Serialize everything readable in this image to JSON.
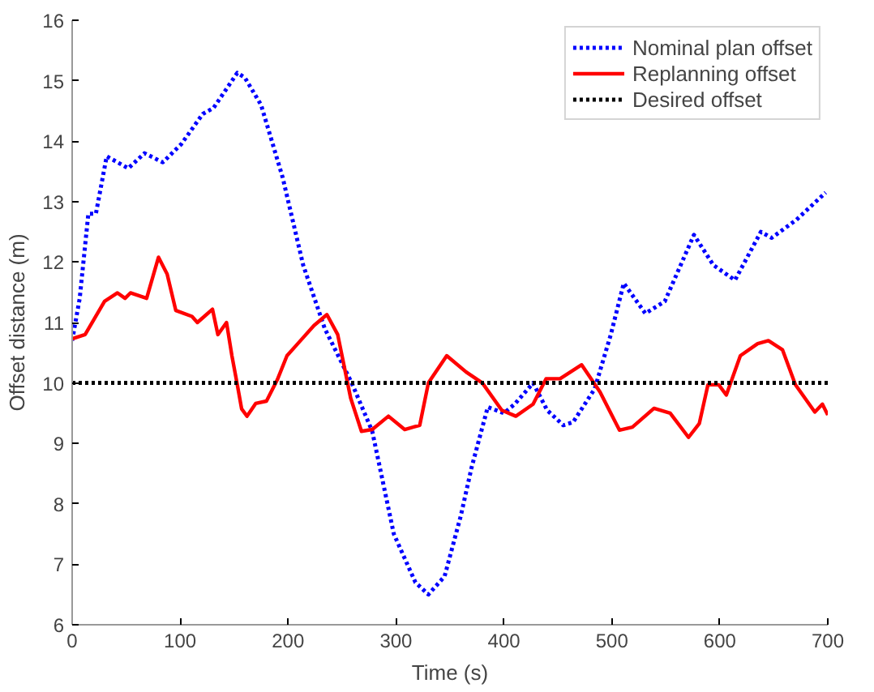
{
  "chart_data": {
    "type": "line",
    "xlabel": "Time (s)",
    "ylabel": "Offset distance (m)",
    "xlim": [
      0,
      700
    ],
    "ylim": [
      6,
      16
    ],
    "xticks": [
      0,
      100,
      200,
      300,
      400,
      500,
      600,
      700
    ],
    "yticks": [
      6,
      7,
      8,
      9,
      10,
      11,
      12,
      13,
      14,
      15,
      16
    ],
    "grid": false,
    "legend": "top right",
    "series": [
      {
        "name": "Nominal plan offset",
        "color": "#0000ff",
        "line_style": "dotted",
        "x": [
          0,
          7,
          15,
          22,
          32,
          52,
          67,
          84,
          101,
          121,
          131,
          153,
          160,
          175,
          195,
          214,
          234,
          259,
          278,
          298,
          318,
          330,
          345,
          360,
          370,
          385,
          400,
          410,
          427,
          440,
          455,
          464,
          484,
          499,
          511,
          531,
          549,
          576,
          594,
          614,
          638,
          648,
          671,
          698
        ],
        "values": [
          10.7,
          11.4,
          12.8,
          12.8,
          13.75,
          13.55,
          13.8,
          13.65,
          13.95,
          14.45,
          14.55,
          15.13,
          15.05,
          14.6,
          13.4,
          11.95,
          10.9,
          10.0,
          9.2,
          7.5,
          6.7,
          6.5,
          6.8,
          7.8,
          8.6,
          9.6,
          9.5,
          9.65,
          10.0,
          9.55,
          9.3,
          9.35,
          9.9,
          10.8,
          11.65,
          11.15,
          11.35,
          12.45,
          11.95,
          11.7,
          12.5,
          12.4,
          12.7,
          13.15
        ]
      },
      {
        "name": "Replanning offset",
        "color": "#ff0000",
        "line_style": "solid",
        "x": [
          0,
          12,
          30,
          42,
          49,
          54,
          69,
          80,
          88,
          96,
          111,
          116,
          130,
          135,
          143,
          148,
          153,
          157,
          162,
          170,
          180,
          190,
          199,
          209,
          224,
          236,
          246,
          258,
          268,
          278,
          293,
          308,
          322,
          330,
          347,
          365,
          380,
          398,
          411,
          427,
          439,
          452,
          472,
          489,
          507,
          519,
          539,
          554,
          571,
          581,
          589,
          599,
          606,
          619,
          635,
          645,
          658,
          670,
          688,
          695,
          700
        ],
        "values": [
          10.73,
          10.8,
          11.35,
          11.49,
          11.4,
          11.49,
          11.4,
          12.08,
          11.8,
          11.2,
          11.1,
          11.0,
          11.22,
          10.8,
          11.0,
          10.45,
          9.97,
          9.57,
          9.45,
          9.66,
          9.7,
          10.05,
          10.45,
          10.65,
          10.95,
          11.13,
          10.8,
          9.75,
          9.2,
          9.23,
          9.45,
          9.23,
          9.3,
          10.0,
          10.45,
          10.18,
          10.0,
          9.55,
          9.45,
          9.65,
          10.07,
          10.07,
          10.3,
          9.85,
          9.22,
          9.27,
          9.58,
          9.5,
          9.1,
          9.33,
          9.97,
          9.97,
          9.8,
          10.45,
          10.65,
          10.7,
          10.55,
          9.97,
          9.52,
          9.65,
          9.47
        ]
      },
      {
        "name": "Desired offset",
        "color": "#000000",
        "line_style": "dotted",
        "x": [
          0,
          700
        ],
        "values": [
          10,
          10
        ]
      }
    ]
  }
}
